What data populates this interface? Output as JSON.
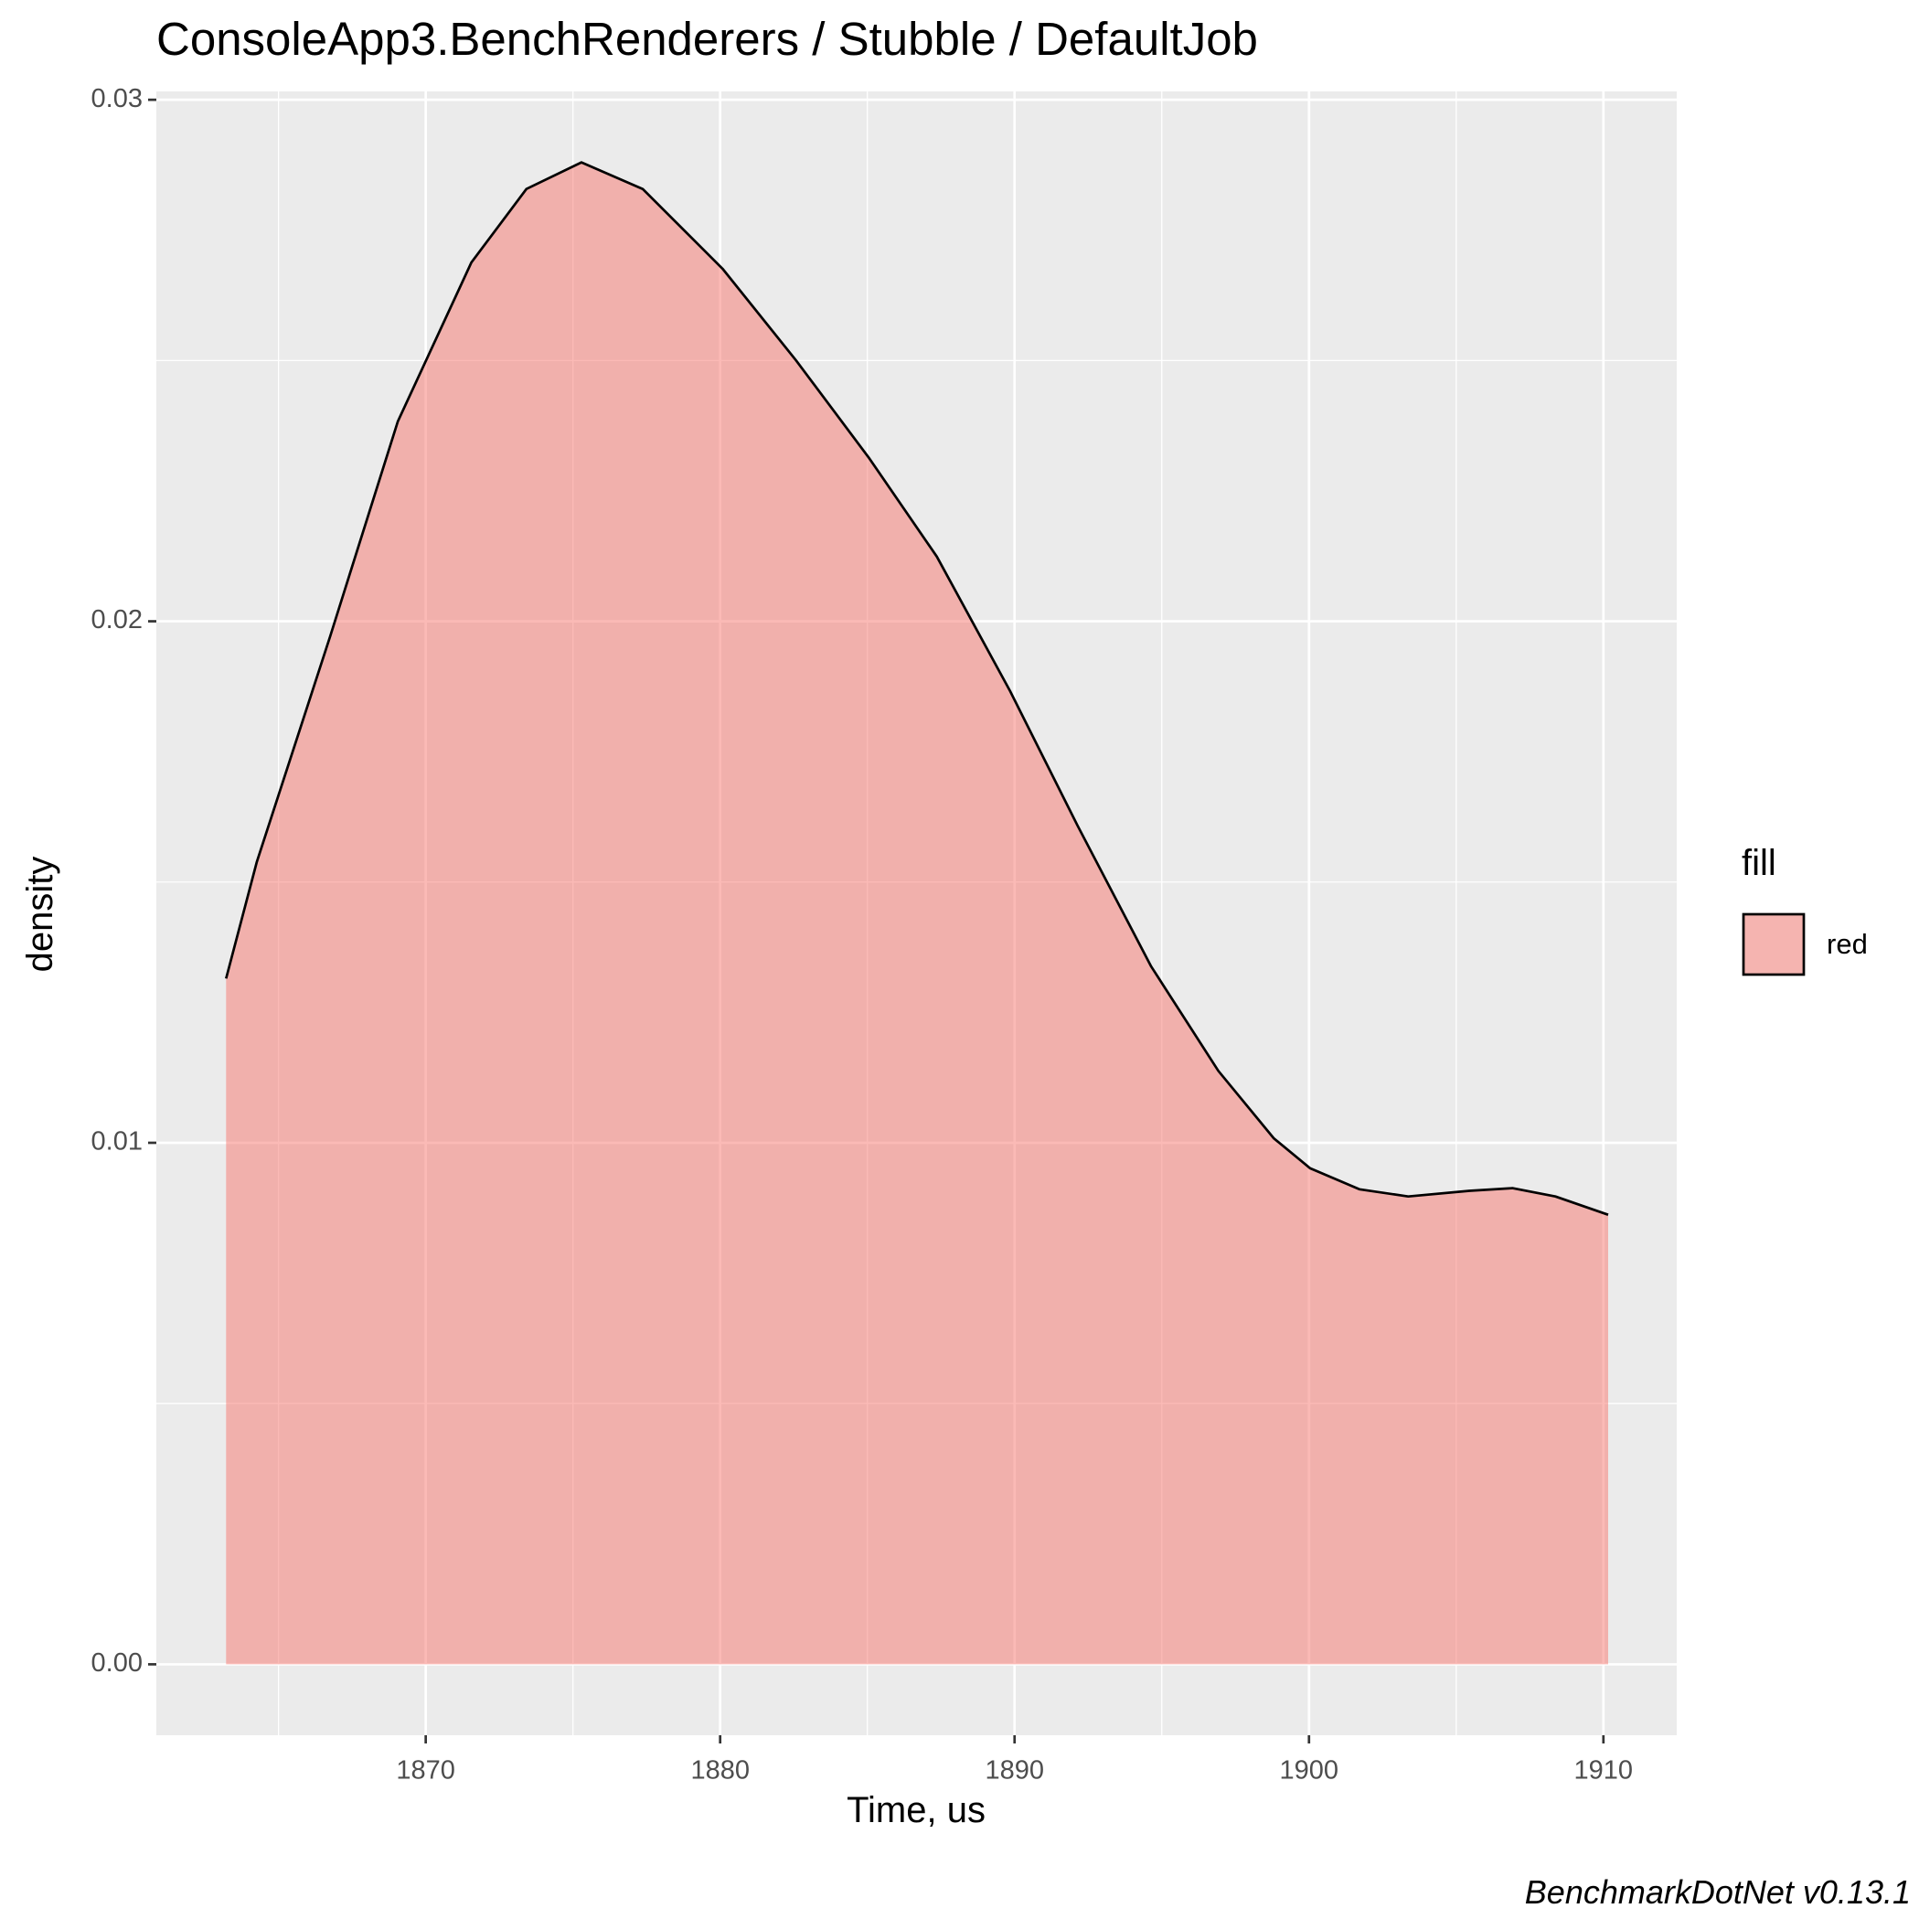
{
  "chart_data": {
    "type": "area",
    "title": "ConsoleApp3.BenchRenderers / Stubble / DefaultJob",
    "x_label": "Time, us",
    "y_label": "density",
    "caption": "BenchmarkDotNet v0.13.1",
    "legend_title": "fill",
    "legend_position": "right",
    "grid": true,
    "xlim": [
      1860.85,
      1912.49
    ],
    "ylim": [
      -0.00136,
      0.03016
    ],
    "xticks": [
      1870,
      1880,
      1890,
      1900,
      1910
    ],
    "yticks": [
      {
        "value": 0,
        "label": "0.00"
      },
      0.01,
      0.02,
      0.03
    ],
    "series": [
      {
        "name": "red",
        "color": "#F8766D",
        "x": [
          1863.22,
          1864.26,
          1866.76,
          1869.05,
          1871.55,
          1873.42,
          1875.29,
          1877.37,
          1880.08,
          1882.58,
          1885.07,
          1887.36,
          1889.85,
          1892.14,
          1894.64,
          1896.92,
          1898.8,
          1900.04,
          1901.71,
          1903.37,
          1905.45,
          1906.91,
          1908.37,
          1910.16
        ],
        "values": [
          0.01315,
          0.01538,
          0.01972,
          0.02383,
          0.02688,
          0.02829,
          0.0288,
          0.02829,
          0.02676,
          0.025,
          0.02312,
          0.02124,
          0.01866,
          0.01608,
          0.01338,
          0.01138,
          0.01009,
          0.00951,
          0.00911,
          0.00897,
          0.00908,
          0.00913,
          0.00897,
          0.00862
        ]
      }
    ]
  }
}
